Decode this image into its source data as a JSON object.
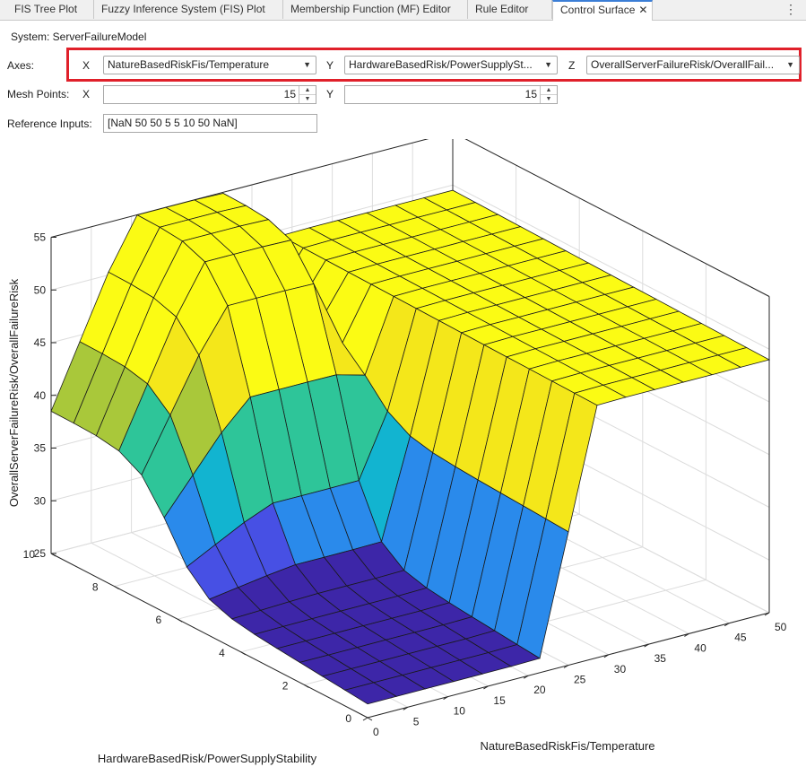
{
  "tabs": [
    {
      "label": "FIS Tree Plot",
      "active": false
    },
    {
      "label": "Fuzzy Inference System (FIS) Plot",
      "active": false
    },
    {
      "label": "Membership Function (MF) Editor",
      "active": false
    },
    {
      "label": "Rule Editor",
      "active": false
    },
    {
      "label": "Control Surface",
      "active": true
    }
  ],
  "system": {
    "label": "System: ServerFailureModel"
  },
  "axes": {
    "label": "Axes:",
    "x_label": "X",
    "x_value": "NatureBasedRiskFis/Temperature",
    "y_label": "Y",
    "y_value": "HardwareBasedRisk/PowerSupplySt...",
    "z_label": "Z",
    "z_value": "OverallServerFailureRisk/OverallFail..."
  },
  "mesh": {
    "label": "Mesh Points:",
    "x_label": "X",
    "x_value": "15",
    "y_label": "Y",
    "y_value": "15"
  },
  "reference": {
    "label": "Reference Inputs:",
    "value": "[NaN 50 50 5 5 10 50 NaN]"
  },
  "chart_data": {
    "type": "surface",
    "xlabel": "NatureBasedRiskFis/Temperature",
    "ylabel": "HardwareBasedRisk/PowerSupplyStability",
    "zlabel": "OverallServerFailureRisk/OverallFailureRisk",
    "xlim": [
      0,
      50
    ],
    "ylim": [
      0,
      10
    ],
    "zlim": [
      25,
      55
    ],
    "x_ticks": [
      0,
      5,
      10,
      15,
      20,
      25,
      30,
      35,
      40,
      45,
      50
    ],
    "y_ticks": [
      0,
      2,
      4,
      6,
      8,
      10
    ],
    "z_ticks": [
      25,
      30,
      35,
      40,
      45,
      50,
      55
    ],
    "mesh_x": 15,
    "mesh_y": 15,
    "colormap": [
      "#3d26a8",
      "#4750e4",
      "#2a8aeb",
      "#12b4d0",
      "#2ec599",
      "#a9c83a",
      "#f4e71a",
      "#fbfb14"
    ],
    "grid": true
  }
}
